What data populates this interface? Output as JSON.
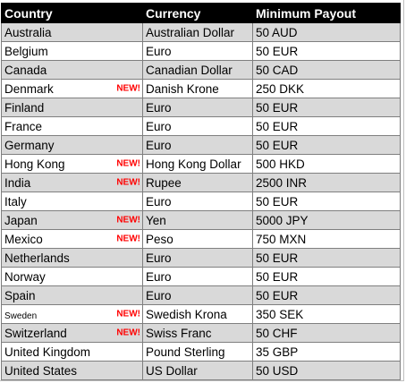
{
  "headers": {
    "country": "Country",
    "currency": "Currency",
    "payout": "Minimum Payout"
  },
  "colors": {
    "header_bg": "#000000",
    "header_text": "#ffffff",
    "shaded_row": "#d9d9d9",
    "new_badge": "#ff0000"
  },
  "rows": [
    {
      "country": "Australia",
      "new": "",
      "currency": "Australian Dollar",
      "payout": "50 AUD"
    },
    {
      "country": "Belgium",
      "new": "",
      "currency": "Euro",
      "payout": "50 EUR"
    },
    {
      "country": "Canada",
      "new": "",
      "currency": "Canadian Dollar",
      "payout": "50 CAD"
    },
    {
      "country": "Denmark",
      "new": "NEW!",
      "currency": "Danish Krone",
      "payout": "250 DKK"
    },
    {
      "country": "Finland",
      "new": "",
      "currency": "Euro",
      "payout": "50 EUR"
    },
    {
      "country": "France",
      "new": "",
      "currency": "Euro",
      "payout": "50 EUR"
    },
    {
      "country": "Germany",
      "new": "",
      "currency": "Euro",
      "payout": "50 EUR"
    },
    {
      "country": "Hong Kong",
      "new": "NEW!",
      "currency": "Hong Kong Dollar",
      "payout": "500 HKD"
    },
    {
      "country": "India",
      "new": "NEW!",
      "currency": "Rupee",
      "payout": "2500 INR"
    },
    {
      "country": "Italy",
      "new": "",
      "currency": "Euro",
      "payout": "50 EUR"
    },
    {
      "country": "Japan",
      "new": "NEW!",
      "currency": "Yen",
      "payout": "5000 JPY"
    },
    {
      "country": "Mexico",
      "new": "NEW!",
      "currency": "Peso",
      "payout": "750 MXN"
    },
    {
      "country": "Netherlands",
      "new": "",
      "currency": "Euro",
      "payout": "50 EUR"
    },
    {
      "country": "Norway",
      "new": "",
      "currency": "Euro",
      "payout": "50 EUR"
    },
    {
      "country": "Spain",
      "new": "",
      "currency": "Euro",
      "payout": "50 EUR"
    },
    {
      "country": "Sweden",
      "new": "NEW!",
      "currency": "Swedish Krona",
      "payout": "350 SEK"
    },
    {
      "country": "Switzerland",
      "new": "NEW!",
      "currency": "Swiss Franc",
      "payout": "50 CHF"
    },
    {
      "country": "United Kingdom",
      "new": "",
      "currency": "Pound Sterling",
      "payout": "35 GBP"
    },
    {
      "country": "United States",
      "new": "",
      "currency": "US Dollar",
      "payout": "50 USD"
    }
  ]
}
